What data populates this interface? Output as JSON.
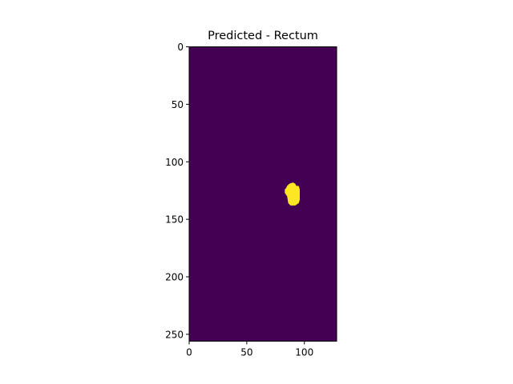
{
  "chart_data": {
    "type": "heatmap",
    "title": "Predicted - Rectum",
    "xlabel": "",
    "ylabel": "",
    "colormap": "viridis",
    "image_shape": [
      256,
      128
    ],
    "xlim": [
      0,
      128
    ],
    "ylim": [
      256,
      0
    ],
    "x_ticks": [
      0,
      50,
      100
    ],
    "y_ticks": [
      0,
      50,
      100,
      150,
      200,
      250
    ],
    "grid": false,
    "colors": {
      "background": "#440154",
      "foreground": "#fde725"
    },
    "regions": [
      {
        "label": "Rectum",
        "value": 1,
        "polygon": [
          [
            84,
            123
          ],
          [
            85,
            121
          ],
          [
            87,
            119
          ],
          [
            90,
            118
          ],
          [
            92,
            119
          ],
          [
            93,
            121
          ],
          [
            95,
            121
          ],
          [
            96,
            124
          ],
          [
            96,
            133
          ],
          [
            95,
            136
          ],
          [
            92,
            138
          ],
          [
            88,
            138
          ],
          [
            86,
            136
          ],
          [
            85,
            130
          ],
          [
            83,
            127
          ],
          [
            83,
            124
          ]
        ]
      }
    ]
  }
}
